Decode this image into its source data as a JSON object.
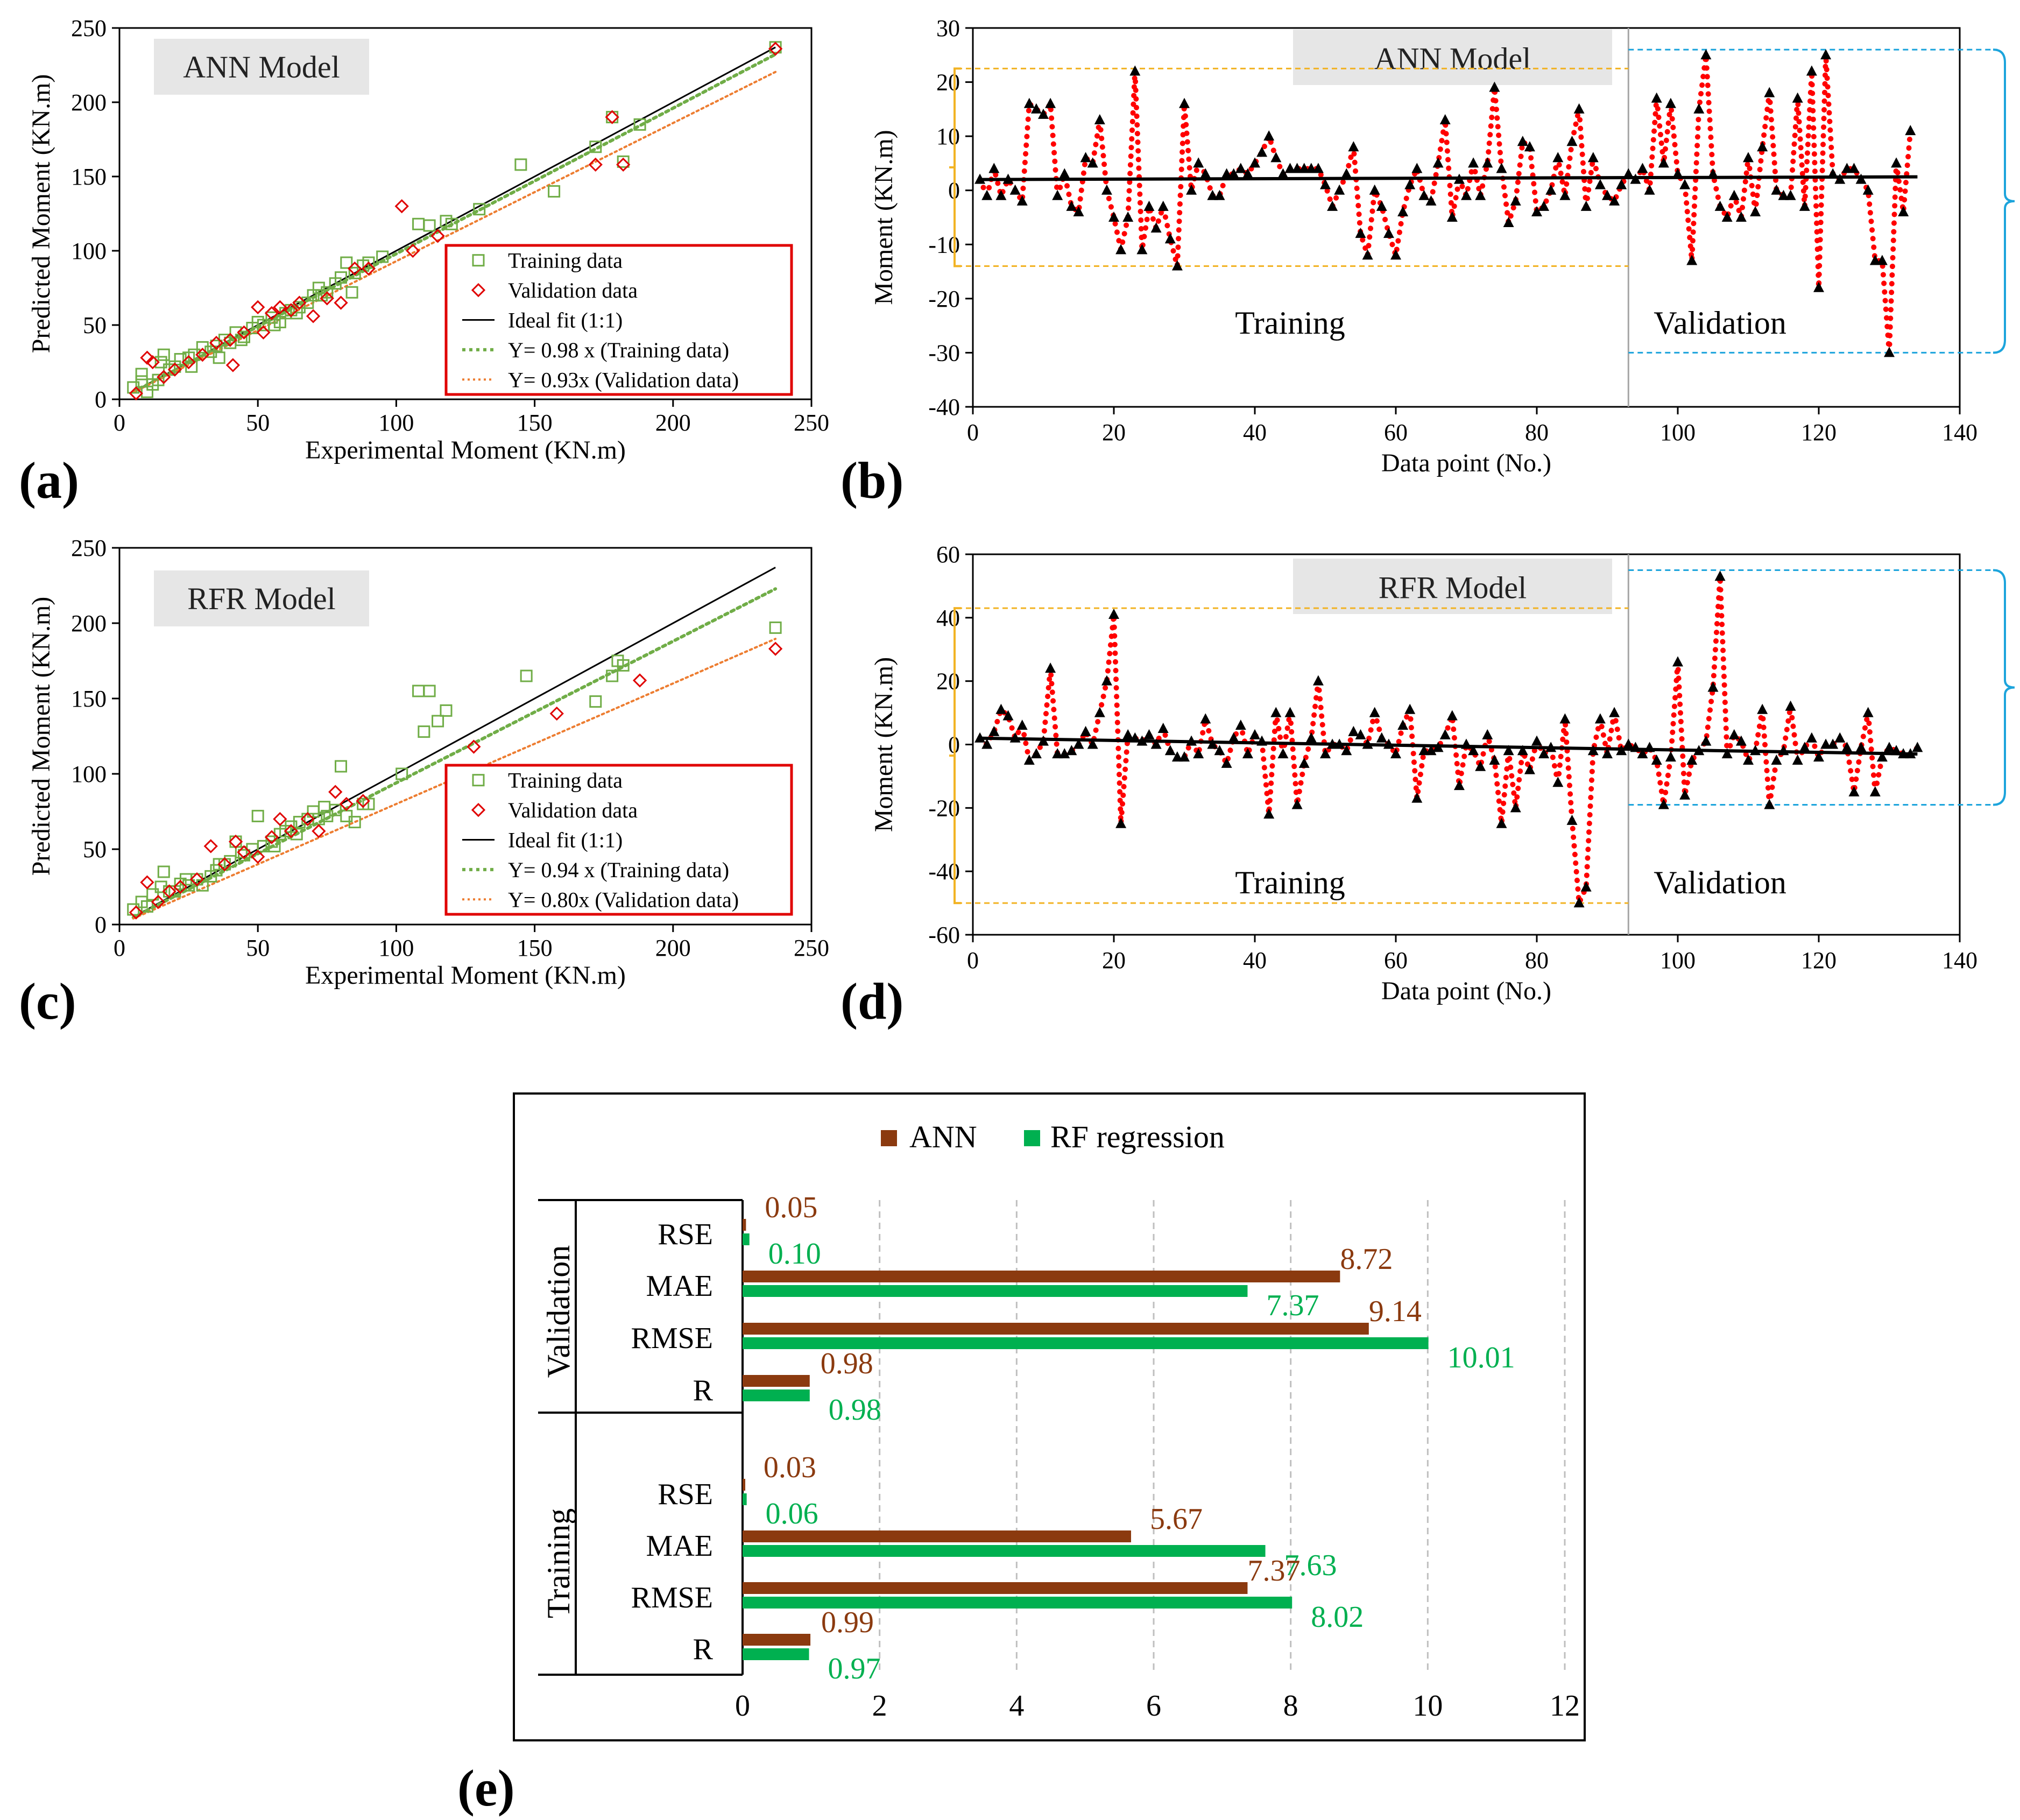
{
  "chart_data": [
    {
      "id": "a",
      "type": "scatter",
      "panel_label": "(a)",
      "title": "ANN Model",
      "xlabel": "Experimental Moment (KN.m)",
      "ylabel": "Predicted Moment (KN.m)",
      "xlim": [
        0,
        250
      ],
      "ylim": [
        0,
        250
      ],
      "xticks": [
        "0",
        "50",
        "100",
        "150",
        "200",
        "250"
      ],
      "yticks": [
        "0",
        "50",
        "100",
        "150",
        "200",
        "250"
      ],
      "legend": [
        "Training data",
        "Validation data",
        "Ideal fit (1:1)",
        "Y= 0.98 x (Training data)",
        "Y= 0.93x (Validation data)"
      ],
      "fits": {
        "ideal": 1.0,
        "training": 0.98,
        "validation": 0.93,
        "xmax": 237
      },
      "training": [
        [
          5,
          8
        ],
        [
          8,
          17
        ],
        [
          10,
          5
        ],
        [
          12,
          10
        ],
        [
          14,
          13
        ],
        [
          15,
          25
        ],
        [
          18,
          20
        ],
        [
          20,
          22
        ],
        [
          22,
          27
        ],
        [
          25,
          28
        ],
        [
          27,
          30
        ],
        [
          30,
          35
        ],
        [
          33,
          32
        ],
        [
          35,
          36
        ],
        [
          38,
          40
        ],
        [
          40,
          38
        ],
        [
          42,
          45
        ],
        [
          45,
          42
        ],
        [
          48,
          48
        ],
        [
          50,
          52
        ],
        [
          52,
          50
        ],
        [
          55,
          55
        ],
        [
          58,
          52
        ],
        [
          60,
          58
        ],
        [
          62,
          60
        ],
        [
          65,
          62
        ],
        [
          68,
          65
        ],
        [
          70,
          70
        ],
        [
          72,
          75
        ],
        [
          75,
          72
        ],
        [
          78,
          78
        ],
        [
          80,
          82
        ],
        [
          82,
          92
        ],
        [
          85,
          85
        ],
        [
          88,
          90
        ],
        [
          90,
          92
        ],
        [
          108,
          118
        ],
        [
          112,
          117
        ],
        [
          118,
          120
        ],
        [
          145,
          158
        ],
        [
          157,
          140
        ],
        [
          178,
          190
        ],
        [
          182,
          160
        ],
        [
          188,
          185
        ],
        [
          237,
          237
        ],
        [
          8,
          12
        ],
        [
          16,
          30
        ],
        [
          26,
          22
        ],
        [
          36,
          28
        ],
        [
          44,
          40
        ],
        [
          56,
          50
        ],
        [
          64,
          58
        ],
        [
          73,
          70
        ],
        [
          84,
          72
        ],
        [
          95,
          96
        ],
        [
          120,
          118
        ],
        [
          130,
          128
        ],
        [
          172,
          170
        ]
      ],
      "validation": [
        [
          6,
          4
        ],
        [
          10,
          28
        ],
        [
          12,
          25
        ],
        [
          16,
          15
        ],
        [
          20,
          20
        ],
        [
          25,
          25
        ],
        [
          30,
          30
        ],
        [
          35,
          38
        ],
        [
          40,
          40
        ],
        [
          41,
          23
        ],
        [
          45,
          45
        ],
        [
          50,
          62
        ],
        [
          52,
          45
        ],
        [
          55,
          58
        ],
        [
          58,
          62
        ],
        [
          62,
          60
        ],
        [
          65,
          65
        ],
        [
          70,
          56
        ],
        [
          75,
          68
        ],
        [
          80,
          65
        ],
        [
          85,
          88
        ],
        [
          90,
          88
        ],
        [
          102,
          130
        ],
        [
          106,
          100
        ],
        [
          115,
          110
        ],
        [
          172,
          158
        ],
        [
          178,
          190
        ],
        [
          182,
          158
        ],
        [
          237,
          236
        ]
      ]
    },
    {
      "id": "b",
      "type": "line",
      "panel_label": "(b)",
      "title": "ANN Model",
      "xlabel": "Data point (No.)",
      "ylabel": "Moment (KN.m)",
      "xlim": [
        0,
        140
      ],
      "ylim": [
        -40,
        30
      ],
      "xticks": [
        "0",
        "20",
        "40",
        "60",
        "80",
        "100",
        "120",
        "140"
      ],
      "yticks": [
        "-40",
        "-30",
        "-20",
        "-10",
        "0",
        "10",
        "20",
        "30"
      ],
      "region_labels": {
        "training": "Training",
        "validation": "Validation"
      },
      "split_x": 93,
      "trend": [
        [
          1,
          2
        ],
        [
          134,
          2.5
        ]
      ],
      "train_band": [
        -14,
        22.5
      ],
      "val_band": [
        -30,
        26
      ],
      "values": [
        2,
        -1,
        4,
        -1,
        2,
        0,
        -2,
        16,
        15,
        14,
        16,
        -1,
        3,
        -3,
        -4,
        6,
        5,
        13,
        0,
        -5,
        -11,
        -5,
        22,
        -11,
        -3,
        -7,
        -3,
        -9,
        -14,
        16,
        0,
        5,
        3,
        -1,
        -1,
        3,
        3,
        4,
        3,
        5,
        7,
        10,
        6,
        3,
        4,
        4,
        4,
        4,
        4,
        1,
        -3,
        0,
        3,
        8,
        -8,
        -12,
        0,
        -3,
        -8,
        -12,
        -4,
        1,
        4,
        -1,
        -2,
        5,
        13,
        -5,
        2,
        -1,
        5,
        -1,
        5,
        19,
        4,
        -6,
        -2,
        9,
        8,
        -4,
        -3,
        0,
        6,
        -1,
        9,
        15,
        -3,
        6,
        1,
        -1,
        -2,
        1,
        3,
        2,
        4,
        0,
        17,
        5,
        16,
        3,
        1,
        -13,
        15,
        25,
        3,
        -3,
        -5,
        -1,
        -5,
        6,
        -4,
        8,
        18,
        0,
        -1,
        -1,
        17,
        -3,
        22,
        -18,
        25,
        3,
        2,
        4,
        4,
        2,
        0,
        -13,
        -13,
        -30,
        5,
        -4,
        11
      ]
    },
    {
      "id": "c",
      "type": "scatter",
      "panel_label": "(c)",
      "title": "RFR Model",
      "xlabel": "Experimental Moment (KN.m)",
      "ylabel": "Predicted Moment (KN.m)",
      "xlim": [
        0,
        250
      ],
      "ylim": [
        0,
        250
      ],
      "xticks": [
        "0",
        "50",
        "100",
        "150",
        "200",
        "250"
      ],
      "yticks": [
        "0",
        "50",
        "100",
        "150",
        "200",
        "250"
      ],
      "legend": [
        "Training data",
        "Validation data",
        "Ideal fit (1:1)",
        "Y= 0.94 x (Training data)",
        "Y= 0.80x (Validation data)"
      ],
      "fits": {
        "ideal": 1.0,
        "training": 0.94,
        "validation": 0.8,
        "xmax": 237
      },
      "training": [
        [
          5,
          10
        ],
        [
          8,
          15
        ],
        [
          10,
          12
        ],
        [
          12,
          20
        ],
        [
          15,
          25
        ],
        [
          16,
          35
        ],
        [
          18,
          22
        ],
        [
          20,
          22
        ],
        [
          22,
          27
        ],
        [
          25,
          26
        ],
        [
          28,
          30
        ],
        [
          30,
          26
        ],
        [
          33,
          32
        ],
        [
          35,
          36
        ],
        [
          38,
          40
        ],
        [
          40,
          42
        ],
        [
          42,
          55
        ],
        [
          45,
          46
        ],
        [
          48,
          50
        ],
        [
          50,
          72
        ],
        [
          52,
          52
        ],
        [
          55,
          55
        ],
        [
          58,
          60
        ],
        [
          60,
          62
        ],
        [
          62,
          65
        ],
        [
          65,
          68
        ],
        [
          68,
          70
        ],
        [
          70,
          75
        ],
        [
          72,
          70
        ],
        [
          75,
          72
        ],
        [
          78,
          76
        ],
        [
          80,
          105
        ],
        [
          82,
          72
        ],
        [
          85,
          68
        ],
        [
          88,
          80
        ],
        [
          90,
          80
        ],
        [
          102,
          100
        ],
        [
          108,
          155
        ],
        [
          110,
          128
        ],
        [
          112,
          155
        ],
        [
          115,
          135
        ],
        [
          118,
          142
        ],
        [
          147,
          165
        ],
        [
          172,
          148
        ],
        [
          178,
          165
        ],
        [
          180,
          175
        ],
        [
          182,
          172
        ],
        [
          237,
          197
        ],
        [
          24,
          30
        ],
        [
          36,
          40
        ],
        [
          44,
          48
        ],
        [
          56,
          52
        ],
        [
          64,
          60
        ],
        [
          74,
          78
        ]
      ],
      "validation": [
        [
          6,
          8
        ],
        [
          10,
          28
        ],
        [
          14,
          15
        ],
        [
          18,
          22
        ],
        [
          22,
          25
        ],
        [
          28,
          30
        ],
        [
          33,
          52
        ],
        [
          38,
          40
        ],
        [
          42,
          55
        ],
        [
          45,
          48
        ],
        [
          50,
          45
        ],
        [
          55,
          58
        ],
        [
          58,
          70
        ],
        [
          62,
          62
        ],
        [
          68,
          70
        ],
        [
          72,
          62
        ],
        [
          78,
          88
        ],
        [
          82,
          80
        ],
        [
          88,
          82
        ],
        [
          128,
          118
        ],
        [
          158,
          140
        ],
        [
          188,
          162
        ],
        [
          237,
          183
        ]
      ]
    },
    {
      "id": "d",
      "type": "line",
      "panel_label": "(d)",
      "title": "RFR Model",
      "xlabel": "Data point (No.)",
      "ylabel": "Moment (KN.m)",
      "xlim": [
        0,
        140
      ],
      "ylim": [
        -60,
        60
      ],
      "xticks": [
        "0",
        "20",
        "40",
        "60",
        "80",
        "100",
        "120",
        "140"
      ],
      "yticks": [
        "-60",
        "-40",
        "-20",
        "0",
        "20",
        "40",
        "60"
      ],
      "region_labels": {
        "training": "Training",
        "validation": "Validation"
      },
      "split_x": 93,
      "trend": [
        [
          1,
          2
        ],
        [
          134,
          -3
        ]
      ],
      "train_band": [
        -50,
        43
      ],
      "val_band": [
        -19,
        55
      ],
      "values": [
        2,
        0,
        4,
        11,
        9,
        2,
        6,
        -5,
        -3,
        1,
        24,
        -3,
        -3,
        -2,
        0,
        4,
        0,
        10,
        20,
        41,
        -25,
        3,
        2,
        1,
        3,
        0,
        5,
        -2,
        -4,
        -4,
        1,
        -3,
        8,
        0,
        -2,
        -6,
        2,
        6,
        -3,
        3,
        1,
        -22,
        10,
        -3,
        10,
        -19,
        -6,
        2,
        20,
        -3,
        0,
        0,
        -2,
        4,
        3,
        0,
        10,
        2,
        0,
        -3,
        6,
        11,
        -17,
        -2,
        -2,
        -1,
        3,
        9,
        -13,
        0,
        -2,
        -7,
        3,
        -5,
        -25,
        -2,
        -20,
        -2,
        -8,
        1,
        -3,
        -1,
        -12,
        8,
        -24,
        -50,
        -45,
        -2,
        8,
        -3,
        10,
        -2,
        0,
        -1,
        -3,
        -1,
        -5,
        -19,
        -4,
        26,
        -16,
        -5,
        -2,
        1,
        18,
        53,
        -3,
        3,
        1,
        -5,
        -2,
        11,
        -19,
        -5,
        -2,
        12,
        -5,
        -1,
        2,
        -4,
        0,
        0,
        2,
        -1,
        -15,
        -1,
        10,
        -15,
        -4,
        -1,
        -2,
        -3,
        -3,
        -1
      ]
    },
    {
      "id": "e",
      "type": "bar",
      "orientation": "horizontal",
      "panel_label": "(e)",
      "legend": [
        "ANN",
        "RF regression"
      ],
      "groups": [
        "Validation",
        "Training"
      ],
      "categories": [
        "RSE",
        "MAE",
        "RMSE",
        "R"
      ],
      "xlim": [
        0,
        12
      ],
      "xticks": [
        "0",
        "2",
        "4",
        "6",
        "8",
        "10",
        "12"
      ],
      "series": [
        {
          "name": "ANN",
          "color": "#8B3A0F",
          "validation": [
            0.05,
            8.72,
            9.14,
            0.98
          ],
          "training": [
            0.03,
            5.67,
            7.37,
            0.99
          ],
          "validation_labels": [
            "0.05",
            "8.72",
            "9.14",
            "0.98"
          ],
          "training_labels": [
            "0.03",
            "5.67",
            "7.37",
            "0.99"
          ]
        },
        {
          "name": "RF regression",
          "color": "#00B050",
          "validation": [
            0.1,
            7.37,
            10.01,
            0.98
          ],
          "training": [
            0.06,
            7.63,
            8.02,
            0.97
          ],
          "validation_labels": [
            "0.10",
            "7.37",
            "10.01",
            "0.98"
          ],
          "training_labels": [
            "0.06",
            "7.63",
            "8.02",
            "0.97"
          ]
        }
      ]
    }
  ]
}
